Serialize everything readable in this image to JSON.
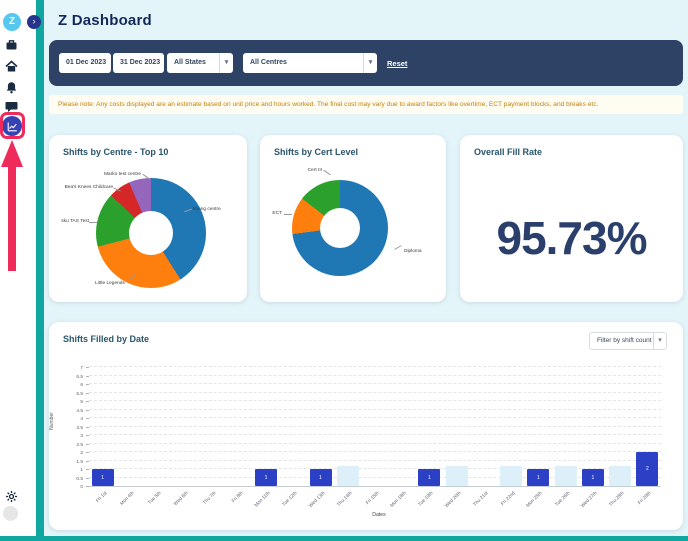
{
  "app": {
    "logo_letter": "Z",
    "title": "Z Dashboard",
    "collapse_glyph": "›",
    "accent_teal": "#11A7A1",
    "navy": "#2D4265",
    "background": "#E3F5F9",
    "annotation_color": "#EE2B5B"
  },
  "sidebar": {
    "icons": [
      "briefcase",
      "home",
      "bell",
      "chat"
    ],
    "active_icon": "line-chart",
    "bottom_icons": [
      "gear",
      "avatar"
    ]
  },
  "filters": {
    "date_from": "01 Dec 2023",
    "date_to": "31 Dec 2023",
    "states": "All States",
    "centres": "All Centres",
    "reset_label": "Reset"
  },
  "notice": {
    "text": "Please note: Any costs displayed are an estimate based on unit price and hours worked. The final cost may vary due to award factors like overtime, ECT payment blocks, and breaks etc.",
    "text_color": "#C4820E"
  },
  "chart_data": [
    {
      "type": "pie",
      "donut": true,
      "title": "Shifts by Centre - Top 10",
      "segments": [
        {
          "label": "khang centre",
          "value": 41,
          "color": "#1F77B4"
        },
        {
          "label": "Little Legends",
          "value": 30,
          "color": "#FF7F0E"
        },
        {
          "label": "sku TAS Test",
          "value": 16,
          "color": "#2CA02C"
        },
        {
          "label": "Bea's Knees Childcare",
          "value": 6.5,
          "color": "#D62728"
        },
        {
          "label": "Marko test centre",
          "value": 6.5,
          "color": "#9467BD"
        }
      ]
    },
    {
      "type": "pie",
      "donut": true,
      "title": "Shifts by Cert Level",
      "segments": [
        {
          "label": "Diploma",
          "value": 73,
          "color": "#1F77B4"
        },
        {
          "label": "ECT",
          "value": 12.5,
          "color": "#FF7F0E"
        },
        {
          "label": "Cert III",
          "value": 14.5,
          "color": "#2CA02C"
        }
      ]
    },
    {
      "type": "stat",
      "title": "Overall Fill Rate",
      "value": "95.73%"
    },
    {
      "type": "bar",
      "title": "Shifts Filled by Date",
      "filter_label": "Filter by shift count",
      "xlabel": "Dates",
      "ylabel": "Number",
      "ylim": [
        0,
        7
      ],
      "ytick_step": 0.5,
      "grid": "dashed horizontal",
      "categories": [
        "Fri 1st",
        "Mon 4th",
        "Tue 5th",
        "Wed 6th",
        "Thu 7th",
        "Fri 8th",
        "Mon 11th",
        "Tue 12th",
        "Wed 13th",
        "Thu 14th",
        "Fri 15th",
        "Mon 18th",
        "Tue 19th",
        "Wed 20th",
        "Thu 21st",
        "Fri 22nd",
        "Mon 25th",
        "Tue 26th",
        "Wed 27th",
        "Thu 28th",
        "Fri 29th"
      ],
      "series": [
        {
          "name": "shifts filled",
          "color": "#2C40C5",
          "values": [
            1,
            0,
            0,
            0,
            0,
            0,
            1,
            0,
            1,
            0,
            0,
            0,
            1,
            0,
            0,
            0,
            1,
            0,
            1,
            0,
            2
          ]
        },
        {
          "name": "light bands",
          "color": "#DDEFF8",
          "values": [
            0,
            0,
            0,
            0,
            0,
            0,
            0,
            0,
            0,
            1.2,
            0,
            0,
            0,
            1.2,
            0,
            1.2,
            0,
            1.2,
            0,
            1.2,
            0
          ]
        }
      ]
    }
  ]
}
